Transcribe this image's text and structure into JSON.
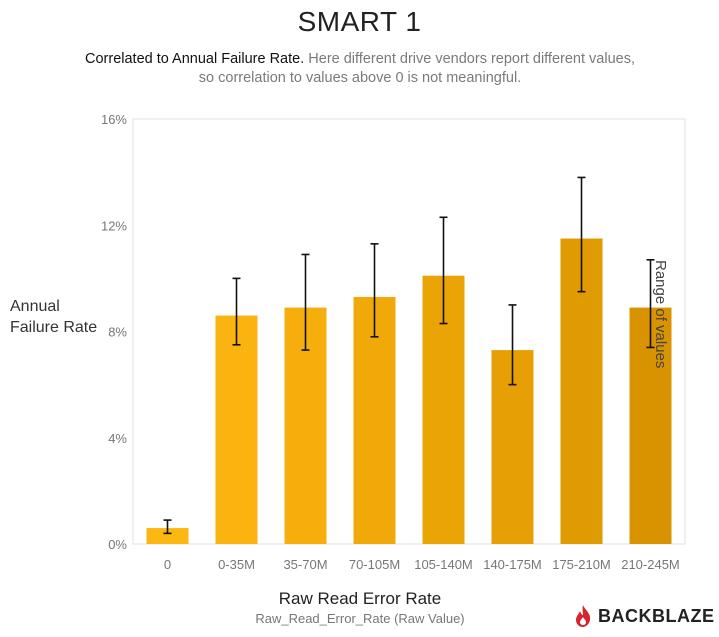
{
  "title": "SMART 1",
  "subtitle_lead": "Correlated to Annual Failure Rate.",
  "subtitle_rest": "Here different drive vendors report different values, so correlation to values above 0 is not meaningful.",
  "brand": "BACKBLAZE",
  "chart_data": {
    "type": "bar",
    "title": "SMART 1",
    "ylabel": "Annual Failure Rate",
    "xlabel": "Raw Read Error Rate",
    "xlabel_sub": "Raw_Read_Error_Rate (Raw Value)",
    "categories": [
      "0",
      "0-35M",
      "35-70M",
      "70-105M",
      "105-140M",
      "140-175M",
      "175-210M",
      "210-245M"
    ],
    "values": [
      0.6,
      8.6,
      8.9,
      9.3,
      10.1,
      7.3,
      11.5,
      8.9
    ],
    "error_low": [
      0.4,
      7.5,
      7.3,
      7.8,
      8.3,
      6.0,
      9.5,
      7.4
    ],
    "error_high": [
      0.9,
      10.0,
      10.9,
      11.3,
      12.3,
      9.0,
      13.8,
      10.7
    ],
    "ylim": [
      0,
      16
    ],
    "yticks": [
      "0%",
      "4%",
      "8%",
      "12%",
      "16%"
    ],
    "ytick_values": [
      0,
      4,
      8,
      12,
      16
    ],
    "annotation": "Range of values",
    "colors": [
      "#fdb713",
      "#fbb30f",
      "#f6ae0c",
      "#f1a909",
      "#eba406",
      "#e69f04",
      "#e09a02",
      "#d99300"
    ],
    "grid": false
  }
}
